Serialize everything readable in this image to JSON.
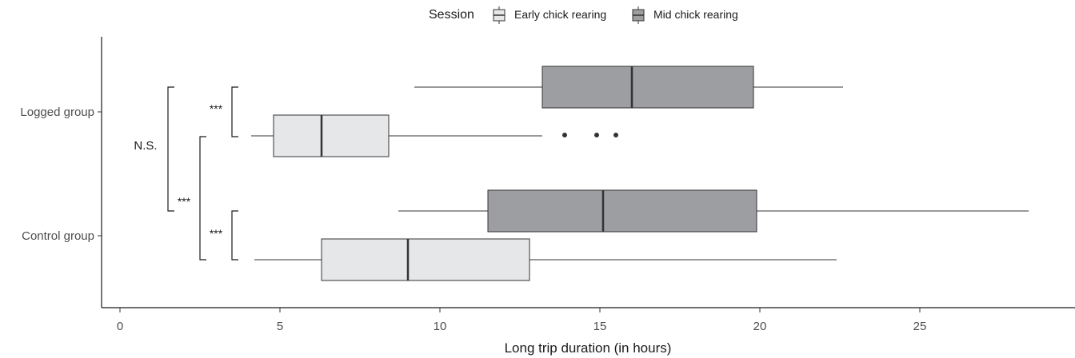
{
  "chart_data": {
    "type": "boxplot",
    "orientation": "horizontal",
    "xlabel": "Long trip duration (in hours)",
    "ylabel": "",
    "xlim": [
      -0.6,
      29.8
    ],
    "xticks": [
      0,
      5,
      10,
      15,
      20,
      25
    ],
    "grid": false,
    "legend": {
      "title": "Session",
      "position": "top",
      "entries": [
        {
          "name": "Early chick rearing",
          "color": "#e6e7e8"
        },
        {
          "name": "Mid chick rearing",
          "color": "#9d9ea1"
        }
      ]
    },
    "categories": [
      "Logged group",
      "Control group"
    ],
    "series": [
      {
        "name": "Early chick rearing",
        "color": "#e6e7e8",
        "boxes": [
          {
            "category": "Logged group",
            "whisker_low": 4.1,
            "q1": 4.8,
            "median": 6.3,
            "q3": 8.4,
            "whisker_high": 13.2,
            "outliers": [
              13.9,
              14.9,
              15.5
            ]
          },
          {
            "category": "Control group",
            "whisker_low": 4.2,
            "q1": 6.3,
            "median": 9.0,
            "q3": 12.8,
            "whisker_high": 22.4,
            "outliers": []
          }
        ]
      },
      {
        "name": "Mid chick rearing",
        "color": "#9d9ea1",
        "boxes": [
          {
            "category": "Logged group",
            "whisker_low": 9.2,
            "q1": 13.2,
            "median": 16.0,
            "q3": 19.8,
            "whisker_high": 22.6,
            "outliers": []
          },
          {
            "category": "Control group",
            "whisker_low": 8.7,
            "q1": 11.5,
            "median": 15.1,
            "q3": 19.9,
            "whisker_high": 28.4,
            "outliers": []
          }
        ]
      }
    ],
    "annotations": [
      {
        "text": "***",
        "spans": "Logged group: Early vs Mid chick rearing"
      },
      {
        "text": "***",
        "spans": "Control group: Early vs Mid chick rearing"
      },
      {
        "text": "N.S.",
        "spans": "Mid chick rearing: Logged vs Control group"
      },
      {
        "text": "***",
        "spans": "Early chick rearing: Logged vs Control group"
      }
    ]
  }
}
